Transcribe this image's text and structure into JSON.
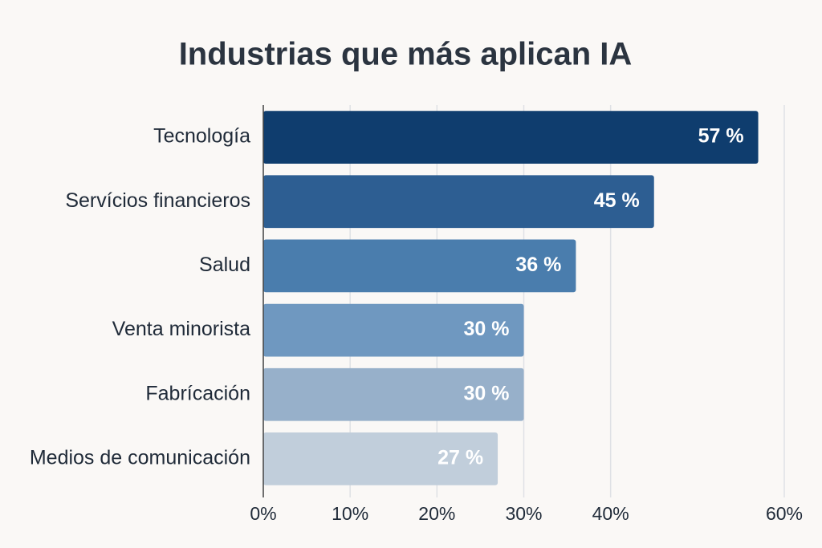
{
  "chart_data": {
    "type": "barh",
    "title": "Industrias que más aplican IA",
    "categories": [
      "Tecnología",
      "Servícios financieros",
      "Salud",
      "Venta minorista",
      "Fabrícación",
      "Medios de comunicación"
    ],
    "values": [
      57,
      45,
      36,
      30,
      30,
      27
    ],
    "value_labels": [
      "57 %",
      "45 %",
      "36 %",
      "30 %",
      "30 %",
      "27 %"
    ],
    "colors": [
      "#0f3d6e",
      "#2d5e92",
      "#4a7dad",
      "#6f98c0",
      "#97b0ca",
      "#c1cedb"
    ],
    "xlim": [
      0,
      60
    ],
    "xticks": [
      {
        "value": 0,
        "label": "0%"
      },
      {
        "value": 10,
        "label": "10%"
      },
      {
        "value": 20,
        "label": "20%"
      },
      {
        "value": 30,
        "label": "30%"
      },
      {
        "value": 40,
        "label": "40%"
      },
      {
        "value": 60,
        "label": "60%"
      }
    ],
    "grid": true
  }
}
